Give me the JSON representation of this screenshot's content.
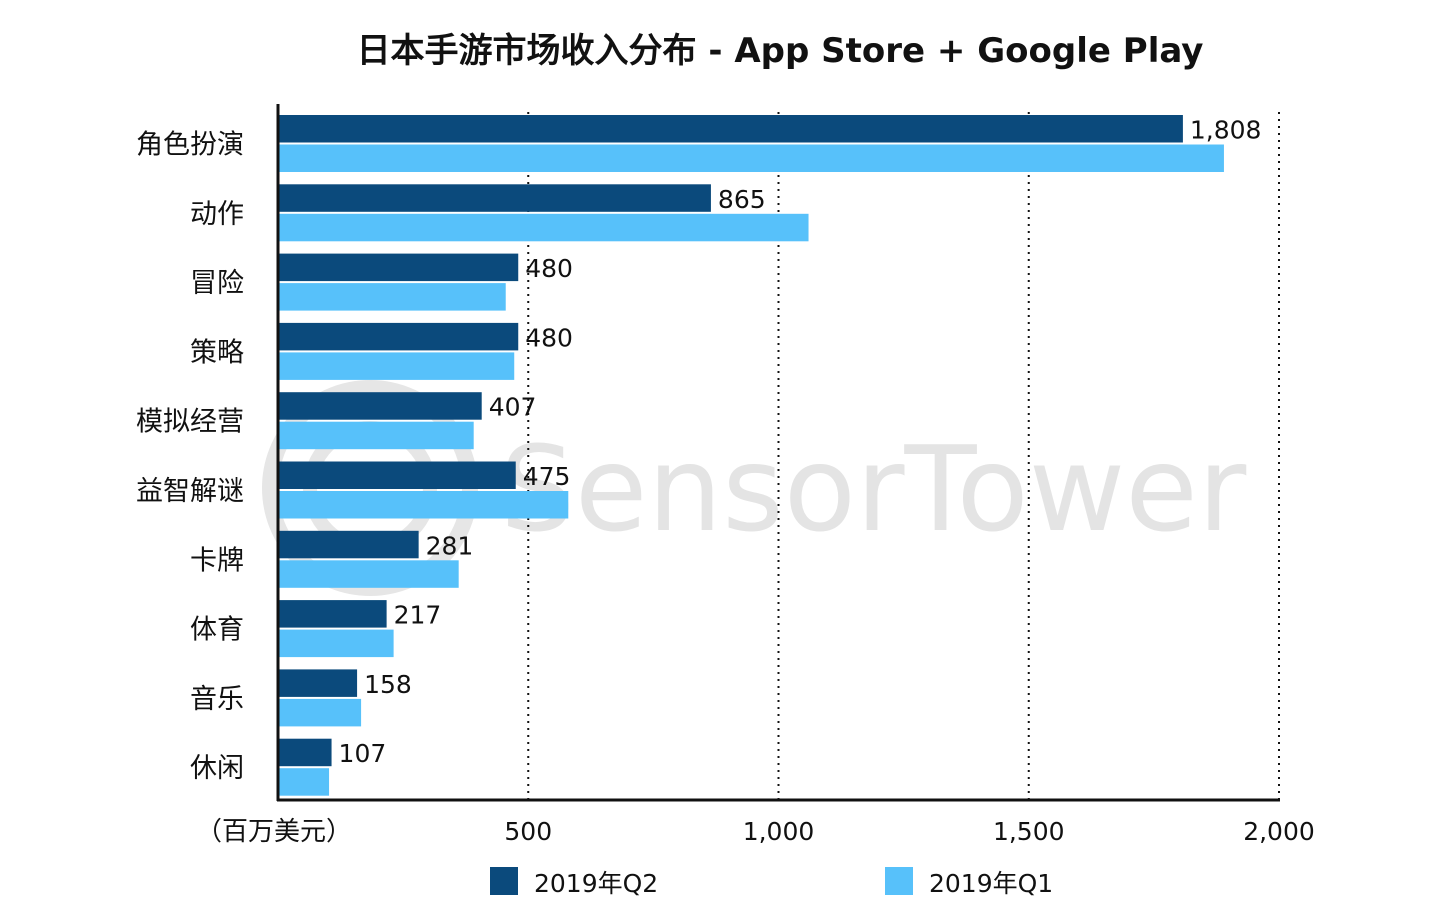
{
  "chart_data": {
    "type": "bar",
    "orientation": "horizontal",
    "title": "日本手游市场收入分布 - App Store + Google Play",
    "unit_label": "（百万美元）",
    "categories": [
      "角色扮演",
      "动作",
      "冒险",
      "策略",
      "模拟经营",
      "益智解谜",
      "卡牌",
      "体育",
      "音乐",
      "休闲"
    ],
    "series": [
      {
        "name": "2019年Q2",
        "color": "#0b4a7c",
        "values": [
          1808,
          865,
          480,
          480,
          407,
          475,
          281,
          217,
          158,
          107
        ],
        "labels": [
          "1,808",
          "865",
          "480",
          "480",
          "407",
          "475",
          "281",
          "217",
          "158",
          "107"
        ]
      },
      {
        "name": "2019年Q1",
        "color": "#57c1fa",
        "values": [
          1890,
          1060,
          455,
          472,
          391,
          580,
          361,
          231,
          166,
          102
        ]
      }
    ],
    "xlim": [
      0,
      2000
    ],
    "xticks": [
      500,
      1000,
      1500,
      2000
    ],
    "xtick_labels": [
      "500",
      "1,000",
      "1,500",
      "2,000"
    ],
    "grid": "vertical dotted",
    "legend_position": "bottom",
    "watermark": "SensorTower"
  }
}
